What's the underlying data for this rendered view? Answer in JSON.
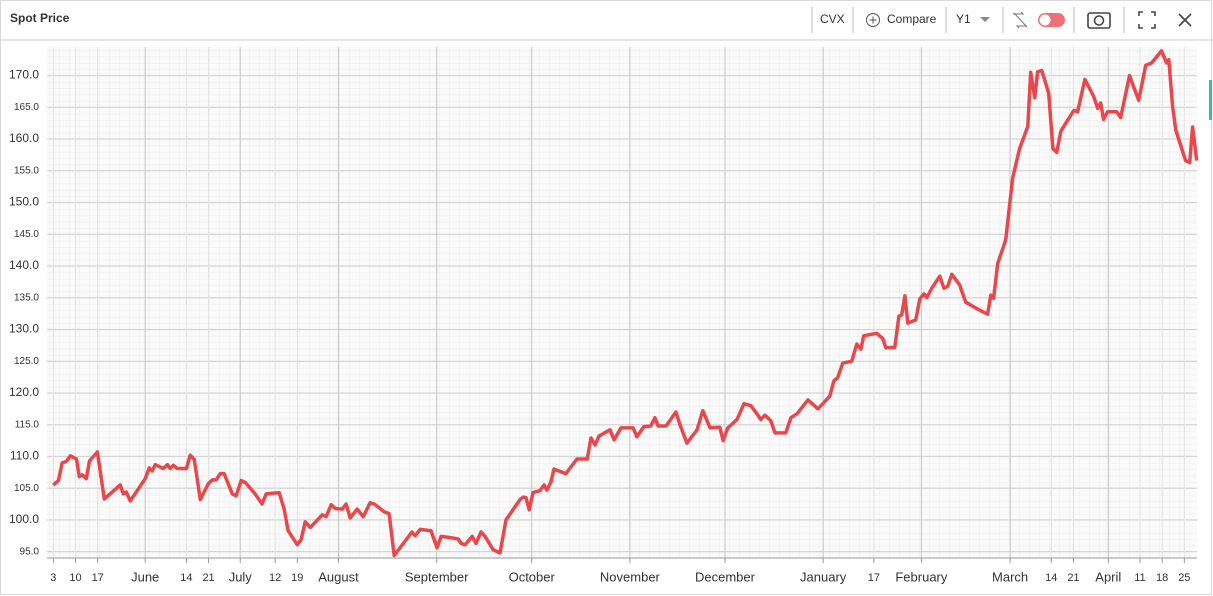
{
  "toolbar": {
    "symbol": "CVX",
    "compare": "Compare",
    "period": "Y1"
  },
  "chart_data": {
    "type": "line",
    "title": "Spot Price",
    "x": [
      0,
      1.6,
      2.8,
      4.1,
      5.4,
      7.3,
      8.2,
      9.1,
      10.4,
      11.4,
      13.9,
      16.1,
      21.1,
      22.1,
      23.0,
      24.3,
      29.0,
      30.3,
      31.2,
      32.2,
      34.7,
      36.0,
      36.9,
      37.9,
      39.1,
      42.0,
      43.2,
      44.5,
      46.4,
      48.9,
      50.2,
      51.4,
      52.7,
      53.9,
      56.5,
      57.7,
      59.3,
      60.6,
      63.7,
      65.9,
      67.2,
      71.3,
      72.9,
      74.1,
      77.0,
      78.2,
      79.5,
      81.1,
      84.9,
      86.1,
      87.7,
      89.0,
      91.2,
      92.4,
      93.7,
      95.9,
      97.8,
      100.0,
      101.3,
      104.4,
      106.0,
      107.6,
      113.2,
      114.2,
      115.8,
      119.2,
      121.1,
      122.4,
      125.6,
      127.8,
      128.7,
      130.0,
      132.2,
      133.4,
      135.0,
      136.3,
      138.8,
      141.0,
      142.9,
      147.3,
      148.3,
      149.2,
      150.2,
      151.4,
      153.6,
      154.9,
      155.8,
      157.1,
      158.0,
      161.8,
      165.3,
      168.5,
      169.7,
      171.0,
      172.2,
      175.7,
      177.0,
      179.2,
      183.0,
      184.2,
      186.4,
      188.6,
      189.9,
      190.9,
      193.4,
      196.5,
      197.8,
      200.0,
      203.2,
      205.0,
      207.3,
      210.4,
      211.4,
      212.9,
      215.8,
      218.0,
      220.2,
      222.1,
      223.3,
      224.6,
      226.5,
      227.8,
      231.2,
      232.8,
      234.7,
      238.2,
      241.3,
      242.9,
      245.1,
      246.4,
      247.6,
      249.2,
      252.0,
      253.6,
      254.9,
      255.8,
      259.9,
      261.8,
      262.8,
      265.6,
      266.9,
      267.8,
      268.8,
      269.7,
      272.2,
      273.5,
      274.8,
      275.7,
      277.3,
      279.8,
      281.1,
      282.3,
      283.6,
      286.1,
      288.0,
      291.8,
      294.9,
      295.9,
      296.8,
      298.1,
      300.6,
      302.8,
      305.0,
      307.6,
      308.5,
      309.8,
      310.7,
      312.0,
      314.2,
      315.5,
      316.7,
      318.0,
      319.6,
      322.1,
      323.3,
      325.6,
      328.4,
      329.7,
      330.6,
      331.5,
      332.8,
      335.6,
      336.9,
      339.7,
      342.6,
      344.8,
      346.7,
      349.8,
      351.4,
      352.1,
      353.3,
      354.3,
      357.4,
      358.7,
      359.6,
      360.9
    ],
    "series": [
      {
        "name": "CVX",
        "color": "#e8474c",
        "values": [
          105.5,
          106.2,
          109.0,
          109.2,
          110.1,
          109.6,
          106.8,
          107.1,
          106.5,
          109.3,
          110.7,
          103.3,
          105.5,
          104.1,
          104.4,
          103.0,
          106.5,
          108.2,
          107.7,
          108.7,
          108.1,
          108.7,
          108.1,
          108.6,
          108.1,
          108.1,
          110.2,
          109.5,
          103.2,
          105.7,
          106.3,
          106.3,
          107.3,
          107.3,
          104.1,
          103.8,
          106.2,
          105.9,
          104.1,
          102.5,
          104.1,
          104.3,
          101.6,
          98.3,
          96.1,
          96.9,
          99.7,
          98.8,
          100.8,
          100.5,
          102.4,
          101.8,
          101.7,
          102.5,
          100.3,
          101.7,
          100.5,
          102.7,
          102.5,
          101.3,
          101.0,
          94.4,
          98.1,
          97.5,
          98.5,
          98.3,
          95.6,
          97.4,
          97.2,
          97.0,
          96.3,
          96.1,
          97.4,
          96.3,
          98.1,
          97.4,
          95.3,
          94.8,
          100.0,
          103.2,
          103.6,
          103.5,
          101.6,
          104.3,
          104.6,
          105.5,
          104.7,
          106.0,
          108.0,
          107.3,
          109.6,
          109.6,
          112.9,
          111.8,
          113.2,
          114.2,
          112.6,
          114.5,
          114.5,
          113.1,
          114.7,
          114.8,
          116.1,
          114.8,
          114.8,
          117.0,
          115.0,
          112.1,
          114.2,
          117.2,
          114.5,
          114.6,
          112.5,
          114.5,
          115.8,
          118.3,
          118.0,
          116.7,
          115.8,
          116.5,
          115.6,
          113.7,
          113.7,
          116.1,
          116.7,
          118.9,
          117.5,
          118.3,
          119.5,
          121.9,
          122.4,
          124.7,
          125.0,
          127.7,
          126.9,
          129.0,
          129.4,
          128.6,
          127.1,
          127.2,
          132.1,
          132.3,
          135.3,
          131.0,
          131.5,
          134.8,
          135.6,
          135.0,
          136.5,
          138.4,
          136.5,
          136.8,
          138.7,
          137.0,
          134.3,
          133.2,
          132.4,
          135.4,
          134.9,
          140.4,
          144.1,
          153.8,
          158.5,
          162.0,
          170.5,
          166.5,
          170.6,
          170.8,
          167.2,
          158.5,
          157.9,
          161.2,
          162.5,
          164.5,
          164.3,
          169.4,
          166.7,
          164.8,
          165.7,
          163.1,
          164.3,
          164.3,
          163.4,
          170.0,
          166.1,
          171.6,
          172.0,
          173.9,
          172.0,
          172.5,
          165.1,
          161.4,
          156.6,
          156.3,
          161.9,
          156.6
        ]
      }
    ],
    "xlim": [
      -2,
      361
    ],
    "xticks": [
      {
        "value": 0,
        "label": "3"
      },
      {
        "value": 7,
        "label": "10"
      },
      {
        "value": 14,
        "label": "17"
      },
      {
        "value": 29,
        "label": "June"
      },
      {
        "value": 42,
        "label": "14"
      },
      {
        "value": 49,
        "label": "21"
      },
      {
        "value": 59,
        "label": "July"
      },
      {
        "value": 70,
        "label": "12"
      },
      {
        "value": 77,
        "label": "19"
      },
      {
        "value": 90,
        "label": "August"
      },
      {
        "value": 121,
        "label": "September"
      },
      {
        "value": 151,
        "label": "October"
      },
      {
        "value": 182,
        "label": "November"
      },
      {
        "value": 212,
        "label": "December"
      },
      {
        "value": 243,
        "label": "January"
      },
      {
        "value": 259,
        "label": "17"
      },
      {
        "value": 274,
        "label": "February"
      },
      {
        "value": 302,
        "label": "March"
      },
      {
        "value": 315,
        "label": "14"
      },
      {
        "value": 322,
        "label": "21"
      },
      {
        "value": 333,
        "label": "April"
      },
      {
        "value": 343,
        "label": "11"
      },
      {
        "value": 350,
        "label": "18"
      },
      {
        "value": 357,
        "label": "25"
      }
    ],
    "ylim": [
      94,
      174.5
    ],
    "yticks": [
      {
        "value": 95,
        "label": "95.0"
      },
      {
        "value": 100,
        "label": "100.0"
      },
      {
        "value": 105,
        "label": "105.0"
      },
      {
        "value": 110,
        "label": "110.0"
      },
      {
        "value": 115,
        "label": "115.0"
      },
      {
        "value": 120,
        "label": "120.0"
      },
      {
        "value": 125,
        "label": "125.0"
      },
      {
        "value": 130,
        "label": "130.0"
      },
      {
        "value": 135,
        "label": "135.0"
      },
      {
        "value": 140,
        "label": "140.0"
      },
      {
        "value": 145,
        "label": "145.0"
      },
      {
        "value": 150,
        "label": "150.0"
      },
      {
        "value": 155,
        "label": "155.0"
      },
      {
        "value": 160,
        "label": "160.0"
      },
      {
        "value": 165,
        "label": "165.0"
      },
      {
        "value": 170,
        "label": "170.0"
      }
    ],
    "grid": true
  }
}
